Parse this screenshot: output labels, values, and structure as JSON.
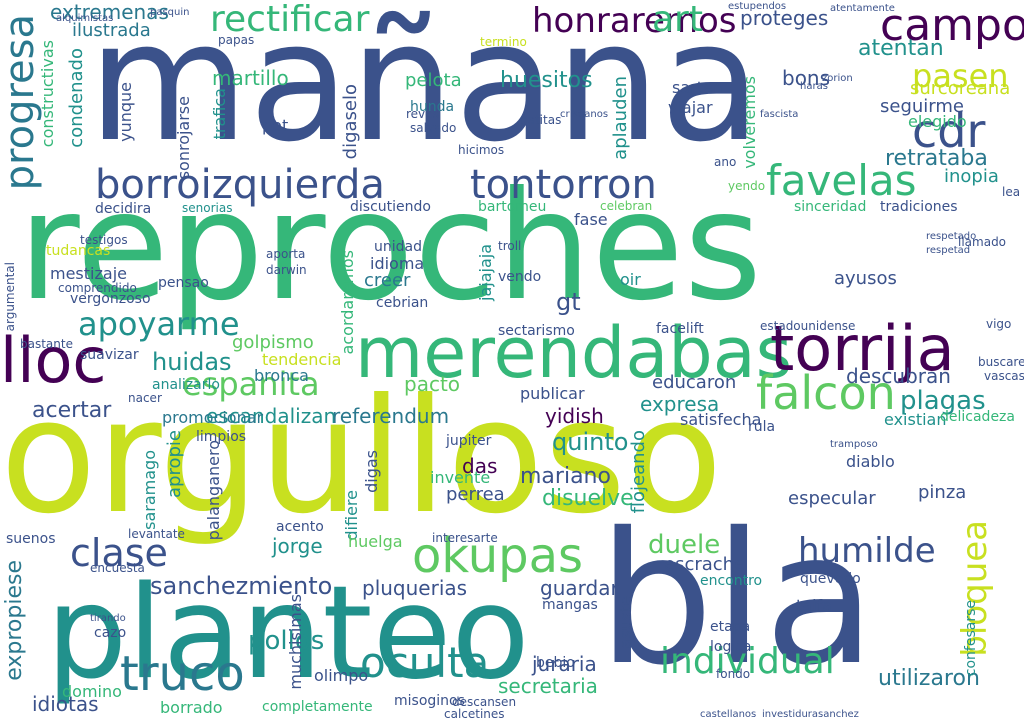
{
  "palette": {
    "navy": "#3b528b",
    "teal": "#21918c",
    "green": "#5ec962",
    "lime": "#c8e020",
    "purple": "#440154",
    "sea": "#2a788e",
    "mint": "#35b779"
  },
  "words": [
    {
      "text": "mañana"
    },
    {
      "text": "reproches"
    },
    {
      "text": "orgulloso"
    },
    {
      "text": "bla"
    },
    {
      "text": "planteo"
    },
    {
      "text": "merendabas"
    },
    {
      "text": "torrija"
    },
    {
      "text": "borroizquierda"
    },
    {
      "text": "tontorron"
    },
    {
      "text": "okupas"
    },
    {
      "text": "rectificar"
    },
    {
      "text": "honraremos"
    },
    {
      "text": "campos"
    },
    {
      "text": "art"
    },
    {
      "text": "cdr"
    },
    {
      "text": "progresa"
    },
    {
      "text": "favelas"
    },
    {
      "text": "pasen"
    },
    {
      "text": "lloc"
    },
    {
      "text": "espanita"
    },
    {
      "text": "falcon"
    },
    {
      "text": "apoyarme"
    },
    {
      "text": "truco"
    },
    {
      "text": "oculta"
    },
    {
      "text": "individual"
    },
    {
      "text": "humilde"
    },
    {
      "text": "clase"
    },
    {
      "text": "bloquea"
    },
    {
      "text": "extremenas"
    },
    {
      "text": "ilustrada"
    },
    {
      "text": "martillo"
    },
    {
      "text": "atentan"
    },
    {
      "text": "proteges"
    },
    {
      "text": "retrataba"
    },
    {
      "text": "huesitos"
    },
    {
      "text": "pelota"
    },
    {
      "text": "sanchezmiento"
    },
    {
      "text": "pluquerias"
    },
    {
      "text": "expropiese"
    },
    {
      "text": "descubran"
    },
    {
      "text": "plagas"
    },
    {
      "text": "acertar"
    },
    {
      "text": "escandalizan"
    },
    {
      "text": "referendum"
    },
    {
      "text": "huidas"
    },
    {
      "text": "quinto"
    },
    {
      "text": "mariano"
    },
    {
      "text": "disuelve"
    },
    {
      "text": "duele"
    },
    {
      "text": "escrache"
    },
    {
      "text": "guardar"
    },
    {
      "text": "jorge"
    },
    {
      "text": "pollos"
    },
    {
      "text": "juraria"
    },
    {
      "text": "secretaria"
    },
    {
      "text": "utilizaron"
    },
    {
      "text": "idiotas"
    },
    {
      "text": "borrado"
    },
    {
      "text": "domino"
    },
    {
      "text": "golpismo"
    },
    {
      "text": "vergonzoso"
    },
    {
      "text": "condenado"
    },
    {
      "text": "constructivas"
    },
    {
      "text": "sonrojarse"
    },
    {
      "text": "yunque"
    },
    {
      "text": "trafica"
    },
    {
      "text": "publicar"
    },
    {
      "text": "yidish"
    },
    {
      "text": "expresa"
    },
    {
      "text": "satisfecha"
    },
    {
      "text": "educaron"
    },
    {
      "text": "pacto"
    },
    {
      "text": "das"
    },
    {
      "text": "perrea"
    },
    {
      "text": "invente"
    },
    {
      "text": "flojeando"
    },
    {
      "text": "especular"
    },
    {
      "text": "pinza"
    },
    {
      "text": "diablo"
    },
    {
      "text": "existian"
    },
    {
      "text": "delicadeza"
    },
    {
      "text": "ayusos"
    },
    {
      "text": "surcoreana"
    },
    {
      "text": "seguirme"
    },
    {
      "text": "elegido"
    },
    {
      "text": "bons"
    },
    {
      "text": "inopia"
    },
    {
      "text": "sarten"
    },
    {
      "text": "viajar"
    },
    {
      "text": "aplauden"
    },
    {
      "text": "volveremos"
    },
    {
      "text": "hunda"
    },
    {
      "text": "tendencia"
    },
    {
      "text": "bronca"
    },
    {
      "text": "analizarlo"
    },
    {
      "text": "promocionar"
    },
    {
      "text": "sectarismo"
    },
    {
      "text": "facelift"
    },
    {
      "text": "estadounidense"
    },
    {
      "text": "jajajaja"
    },
    {
      "text": "idioma"
    },
    {
      "text": "creer"
    },
    {
      "text": "unidad"
    },
    {
      "text": "cebrian"
    },
    {
      "text": "vendo"
    },
    {
      "text": "gt"
    },
    {
      "text": "oir"
    },
    {
      "text": "tradiciones"
    },
    {
      "text": "sinceridad"
    },
    {
      "text": "decidira"
    },
    {
      "text": "senorias"
    },
    {
      "text": "discutiendo"
    },
    {
      "text": "bartomeu"
    },
    {
      "text": "fase"
    },
    {
      "text": "celebran"
    },
    {
      "text": "mestizaje"
    },
    {
      "text": "pensao"
    },
    {
      "text": "comprendido"
    },
    {
      "text": "darwin"
    },
    {
      "text": "aporta"
    },
    {
      "text": "tudancas"
    },
    {
      "text": "testigos"
    },
    {
      "text": "digaselo"
    },
    {
      "text": "acordaremos"
    },
    {
      "text": "pot"
    },
    {
      "text": "hicimos"
    },
    {
      "text": "reves"
    },
    {
      "text": "salvado"
    },
    {
      "text": "patitas"
    },
    {
      "text": "argumental"
    },
    {
      "text": "bastante"
    },
    {
      "text": "suavizar"
    },
    {
      "text": "nacer"
    },
    {
      "text": "rula"
    },
    {
      "text": "jupiter"
    },
    {
      "text": "apropie"
    },
    {
      "text": "palanganero"
    },
    {
      "text": "saramago"
    },
    {
      "text": "limpios"
    },
    {
      "text": "digas"
    },
    {
      "text": "difiere"
    },
    {
      "text": "acento"
    },
    {
      "text": "levantate"
    },
    {
      "text": "suenos"
    },
    {
      "text": "encuesta"
    },
    {
      "text": "cazo"
    },
    {
      "text": "etapa"
    },
    {
      "text": "logica"
    },
    {
      "text": "asuste"
    },
    {
      "text": "taifa"
    },
    {
      "text": "quevedo"
    },
    {
      "text": "encontro"
    },
    {
      "text": "mangas"
    },
    {
      "text": "olimpo"
    },
    {
      "text": "misoginos"
    },
    {
      "text": "muchisimas"
    },
    {
      "text": "completamente"
    },
    {
      "text": "bebio"
    },
    {
      "text": "confesarse"
    },
    {
      "text": "huelga"
    },
    {
      "text": "papas"
    },
    {
      "text": "ano"
    },
    {
      "text": "lea"
    },
    {
      "text": "yendo"
    },
    {
      "text": "llamado"
    },
    {
      "text": "termino"
    },
    {
      "text": "troll"
    },
    {
      "text": "fondo"
    },
    {
      "text": "buscare"
    },
    {
      "text": "vascas"
    },
    {
      "text": "vigo"
    },
    {
      "text": "interesarte"
    },
    {
      "text": "calcetines"
    },
    {
      "text": "descansen"
    },
    {
      "text": "atentamente"
    },
    {
      "text": "estupendos"
    },
    {
      "text": "haras"
    },
    {
      "text": "fascista"
    },
    {
      "text": "zorion"
    },
    {
      "text": "pasquin"
    },
    {
      "text": "castellanos"
    },
    {
      "text": "investidurasanchez"
    },
    {
      "text": "alquimistas"
    },
    {
      "text": "cristianos"
    },
    {
      "text": "respetado"
    },
    {
      "text": "respetad"
    },
    {
      "text": "tramposo"
    },
    {
      "text": "tirando"
    }
  ]
}
